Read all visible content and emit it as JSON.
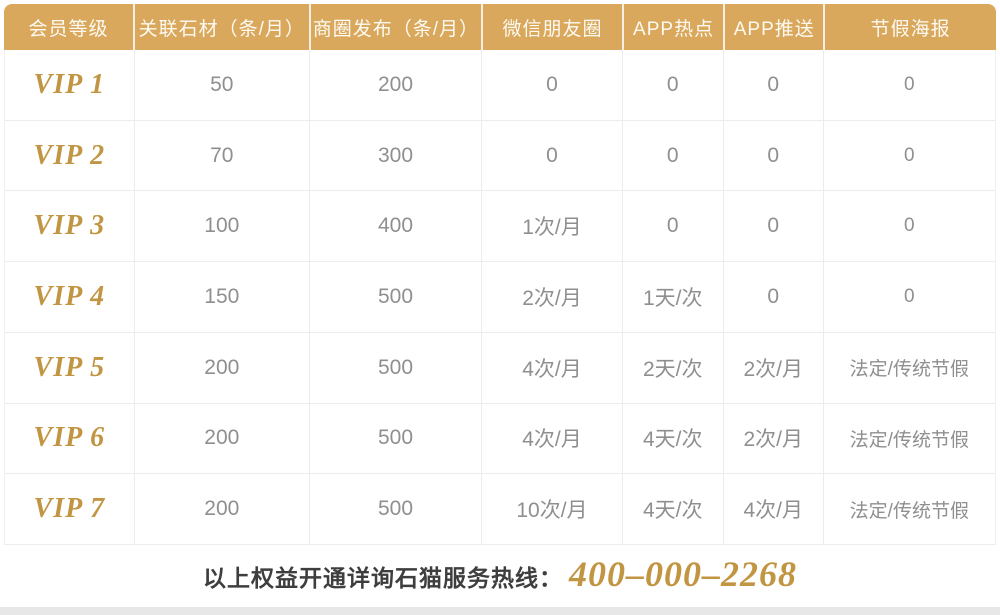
{
  "table": {
    "headers": [
      "会员等级",
      "关联石材（条/月）",
      "商圈发布（条/月）",
      "微信朋友圈",
      "APP热点",
      "APP推送",
      "节假海报"
    ],
    "rows": [
      {
        "level": "VIP 1",
        "values": [
          "50",
          "200",
          "0",
          "0",
          "0",
          "0"
        ]
      },
      {
        "level": "VIP 2",
        "values": [
          "70",
          "300",
          "0",
          "0",
          "0",
          "0"
        ]
      },
      {
        "level": "VIP 3",
        "values": [
          "100",
          "400",
          "1次/月",
          "0",
          "0",
          "0"
        ]
      },
      {
        "level": "VIP 4",
        "values": [
          "150",
          "500",
          "2次/月",
          "1天/次",
          "0",
          "0"
        ]
      },
      {
        "level": "VIP 5",
        "values": [
          "200",
          "500",
          "4次/月",
          "2天/次",
          "2次/月",
          "法定/传统节假"
        ]
      },
      {
        "level": "VIP 6",
        "values": [
          "200",
          "500",
          "4次/月",
          "4天/次",
          "2次/月",
          "法定/传统节假"
        ]
      },
      {
        "level": "VIP 7",
        "values": [
          "200",
          "500",
          "10次/月",
          "4天/次",
          "4次/月",
          "法定/传统节假"
        ]
      }
    ]
  },
  "footer": {
    "text": "以上权益开通详询石猫服务热线：",
    "phone": "400–000–2268"
  },
  "colors": {
    "header_bg": "#d9a85c",
    "gold_text": "#c19542",
    "cell_text": "#8f8f8f",
    "footer_text": "#3e3e3e",
    "grid_line": "#ececec"
  }
}
